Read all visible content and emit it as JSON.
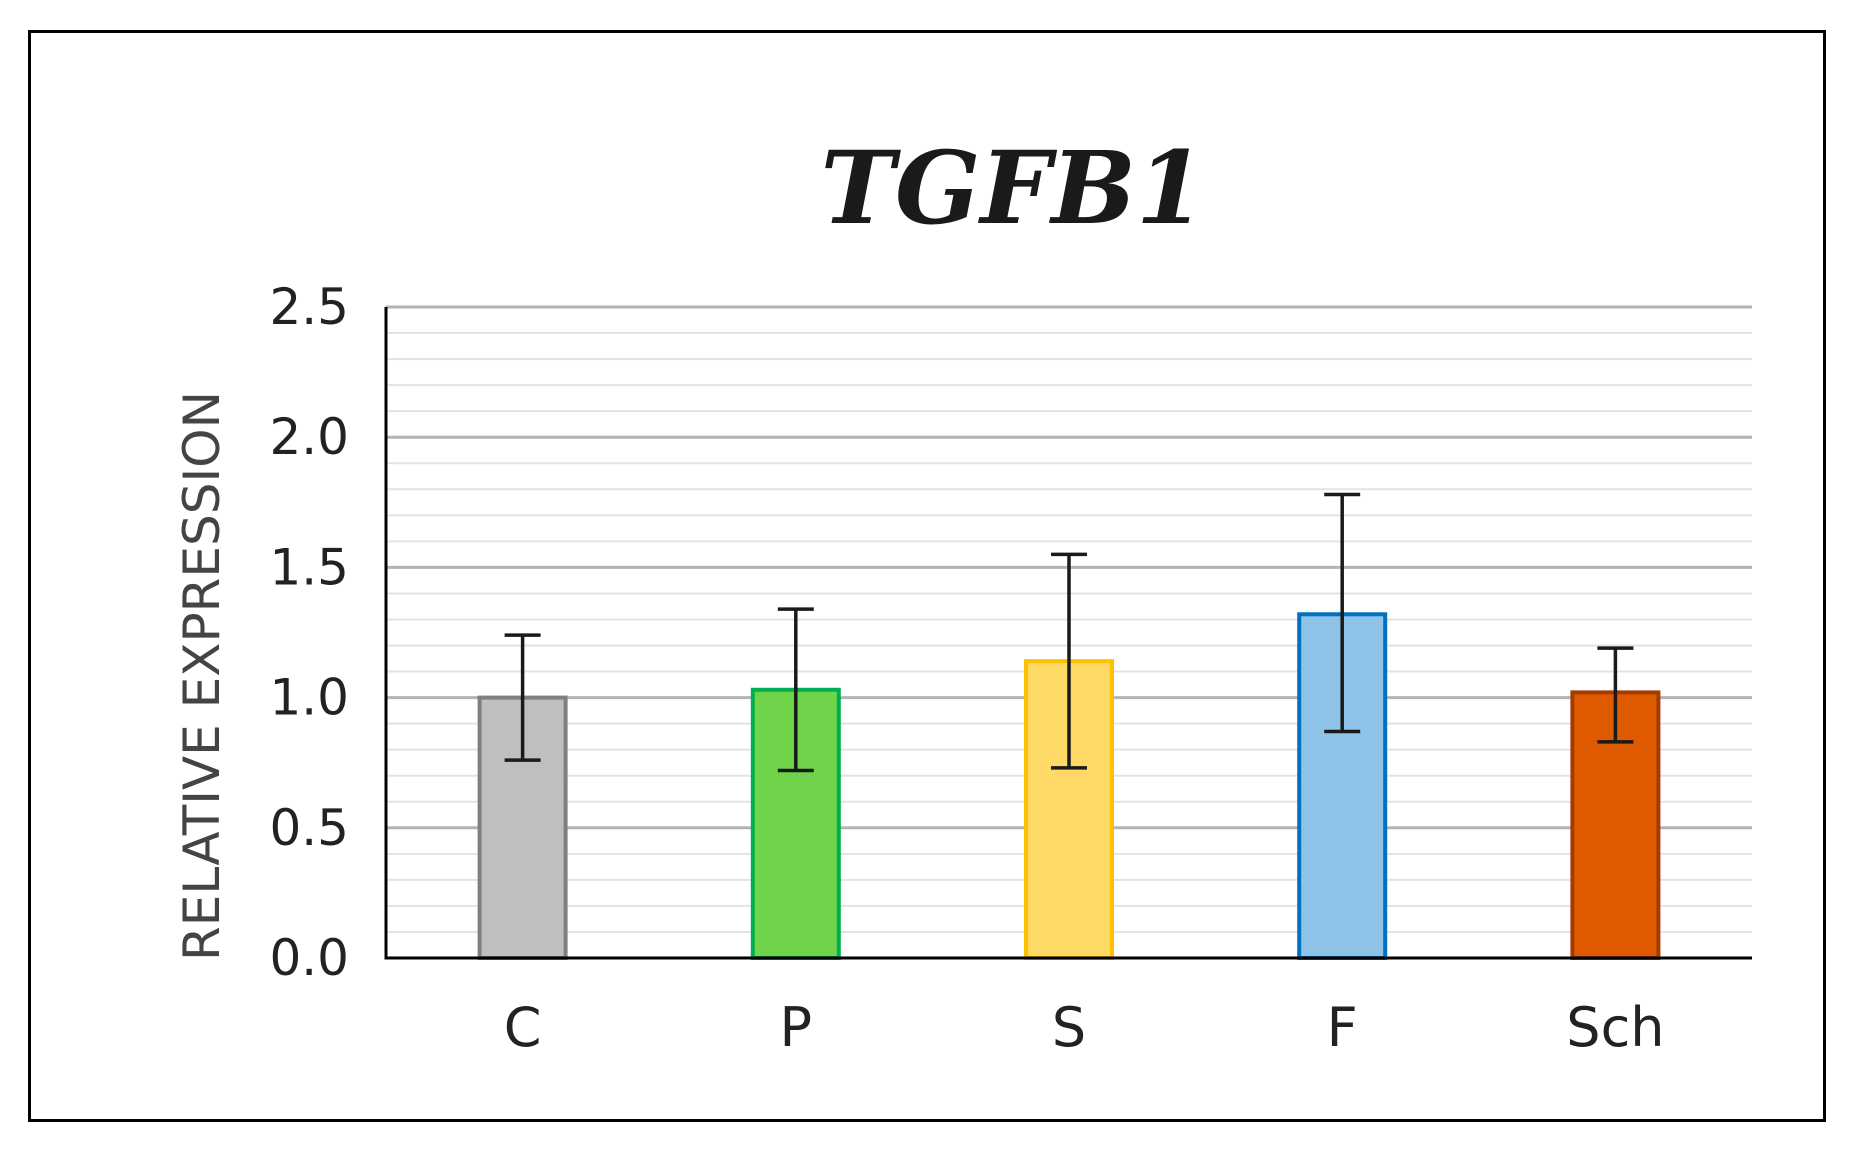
{
  "chart_data": {
    "type": "bar",
    "title": "TGFB1",
    "xlabel": "",
    "ylabel": "RELATIVE EXPRESSION",
    "ylim": [
      0,
      2.5
    ],
    "yticks": [
      "0.0",
      "0.5",
      "1.0",
      "1.5",
      "2.0",
      "2.5"
    ],
    "major_step": 0.5,
    "minor_step": 0.1,
    "grid": true,
    "categories": [
      "C",
      "P",
      "S",
      "F",
      "Sch"
    ],
    "values": [
      1.0,
      1.03,
      1.14,
      1.32,
      1.02
    ],
    "error_low": [
      0.76,
      0.72,
      0.73,
      0.87,
      0.83
    ],
    "error_high": [
      1.24,
      1.34,
      1.55,
      1.78,
      1.19
    ],
    "fill_colors": [
      "#bfbfbf",
      "#70d44b",
      "#ffd966",
      "#8fc3e8",
      "#e05a00"
    ],
    "edge_colors": [
      "#7f7f7f",
      "#00b050",
      "#ffc000",
      "#0070c0",
      "#a63b00"
    ]
  }
}
